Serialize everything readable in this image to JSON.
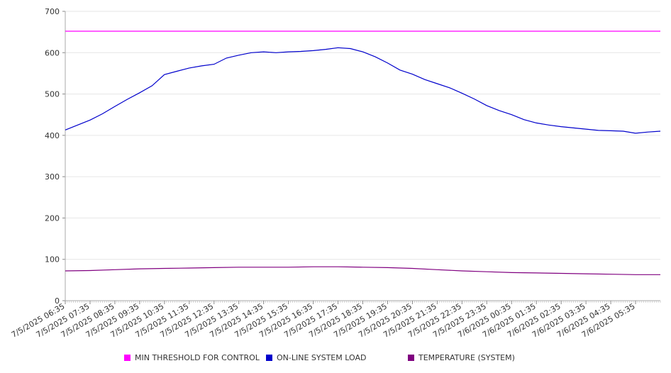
{
  "chart_data": {
    "type": "line",
    "ylim": [
      0,
      700
    ],
    "yticks": [
      "0",
      "100",
      "200",
      "300",
      "400",
      "500",
      "600",
      "700"
    ],
    "x_tick_labels": [
      "7/5/2025 06:35",
      "7/5/2025 07:35",
      "7/5/2025 08:35",
      "7/5/2025 09:35",
      "7/5/2025 10:35",
      "7/5/2025 11:35",
      "7/5/2025 12:35",
      "7/5/2025 13:35",
      "7/5/2025 14:35",
      "7/5/2025 15:35",
      "7/5/2025 16:35",
      "7/5/2025 17:35",
      "7/5/2025 18:35",
      "7/5/2025 19:35",
      "7/5/2025 20:35",
      "7/5/2025 21:35",
      "7/5/2025 22:35",
      "7/5/2025 23:35",
      "7/6/2025 00:35",
      "7/6/2025 01:35",
      "7/6/2025 02:35",
      "7/6/2025 03:35",
      "7/6/2025 04:35",
      "7/6/2025 05:35"
    ],
    "x_range": [
      "7/5/2025 06:35",
      "7/6/2025 06:35"
    ],
    "grid": true,
    "legend_position": "bottom",
    "series": [
      {
        "name": "MIN THRESHOLD FOR CONTROL",
        "color": "#ff00ff",
        "x": [
          "7/5/2025 06:35",
          "7/6/2025 06:35"
        ],
        "y": [
          652,
          652
        ]
      },
      {
        "name": "ON-LINE SYSTEM LOAD",
        "color": "#0000cc",
        "x": [
          "7/5/2025 06:35",
          "7/5/2025 07:05",
          "7/5/2025 07:35",
          "7/5/2025 08:05",
          "7/5/2025 08:35",
          "7/5/2025 09:05",
          "7/5/2025 09:35",
          "7/5/2025 10:05",
          "7/5/2025 10:35",
          "7/5/2025 11:05",
          "7/5/2025 11:35",
          "7/5/2025 12:05",
          "7/5/2025 12:35",
          "7/5/2025 13:05",
          "7/5/2025 13:35",
          "7/5/2025 14:05",
          "7/5/2025 14:35",
          "7/5/2025 15:05",
          "7/5/2025 15:35",
          "7/5/2025 16:05",
          "7/5/2025 16:35",
          "7/5/2025 17:05",
          "7/5/2025 17:35",
          "7/5/2025 18:05",
          "7/5/2025 18:35",
          "7/5/2025 19:05",
          "7/5/2025 19:35",
          "7/5/2025 20:05",
          "7/5/2025 20:35",
          "7/5/2025 21:05",
          "7/5/2025 21:35",
          "7/5/2025 22:05",
          "7/5/2025 22:35",
          "7/5/2025 23:05",
          "7/5/2025 23:35",
          "7/6/2025 00:05",
          "7/6/2025 00:35",
          "7/6/2025 01:05",
          "7/6/2025 01:35",
          "7/6/2025 02:05",
          "7/6/2025 02:35",
          "7/6/2025 03:05",
          "7/6/2025 03:35",
          "7/6/2025 04:05",
          "7/6/2025 04:35",
          "7/6/2025 05:05",
          "7/6/2025 05:35",
          "7/6/2025 06:05",
          "7/6/2025 06:35"
        ],
        "y": [
          413,
          425,
          437,
          452,
          470,
          487,
          503,
          520,
          547,
          555,
          563,
          568,
          572,
          587,
          594,
          600,
          602,
          600,
          602,
          603,
          605,
          608,
          612,
          610,
          602,
          590,
          575,
          558,
          548,
          535,
          525,
          515,
          502,
          488,
          472,
          460,
          450,
          438,
          430,
          425,
          421,
          418,
          415,
          412,
          411,
          410,
          405,
          408,
          410
        ]
      },
      {
        "name": "TEMPERATURE (SYSTEM)",
        "color": "#800080",
        "x": [
          "7/5/2025 06:35",
          "7/5/2025 07:35",
          "7/5/2025 08:35",
          "7/5/2025 09:35",
          "7/5/2025 10:35",
          "7/5/2025 11:35",
          "7/5/2025 12:35",
          "7/5/2025 13:35",
          "7/5/2025 14:35",
          "7/5/2025 15:35",
          "7/5/2025 16:35",
          "7/5/2025 17:35",
          "7/5/2025 18:35",
          "7/5/2025 19:35",
          "7/5/2025 20:35",
          "7/5/2025 21:35",
          "7/5/2025 22:35",
          "7/5/2025 23:35",
          "7/6/2025 00:35",
          "7/6/2025 01:35",
          "7/6/2025 02:35",
          "7/6/2025 03:35",
          "7/6/2025 04:35",
          "7/6/2025 05:35",
          "7/6/2025 06:35"
        ],
        "y": [
          72,
          73,
          75,
          77,
          78,
          79,
          80,
          81,
          81,
          81,
          82,
          82,
          81,
          80,
          78,
          75,
          72,
          70,
          68,
          67,
          66,
          65,
          64,
          63,
          63
        ]
      }
    ]
  }
}
